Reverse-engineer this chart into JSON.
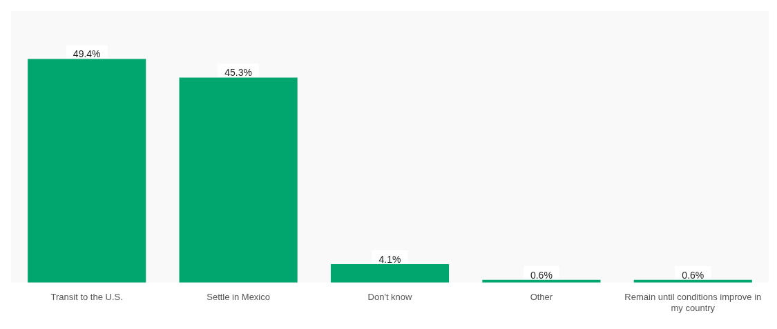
{
  "chart_data": {
    "type": "bar",
    "relative": false,
    "categories": [
      "Transit to the U.S.",
      "Settle in Mexico",
      "Don't know",
      "Other",
      "Remain until conditions improve in my country"
    ],
    "values": [
      49.4,
      45.3,
      4.1,
      0.6,
      0.6
    ],
    "value_labels": [
      "49.4%",
      "45.3%",
      "4.1%",
      "0.6%",
      "0.6%"
    ],
    "color": "#00a66e",
    "grid": false,
    "legend": false
  }
}
